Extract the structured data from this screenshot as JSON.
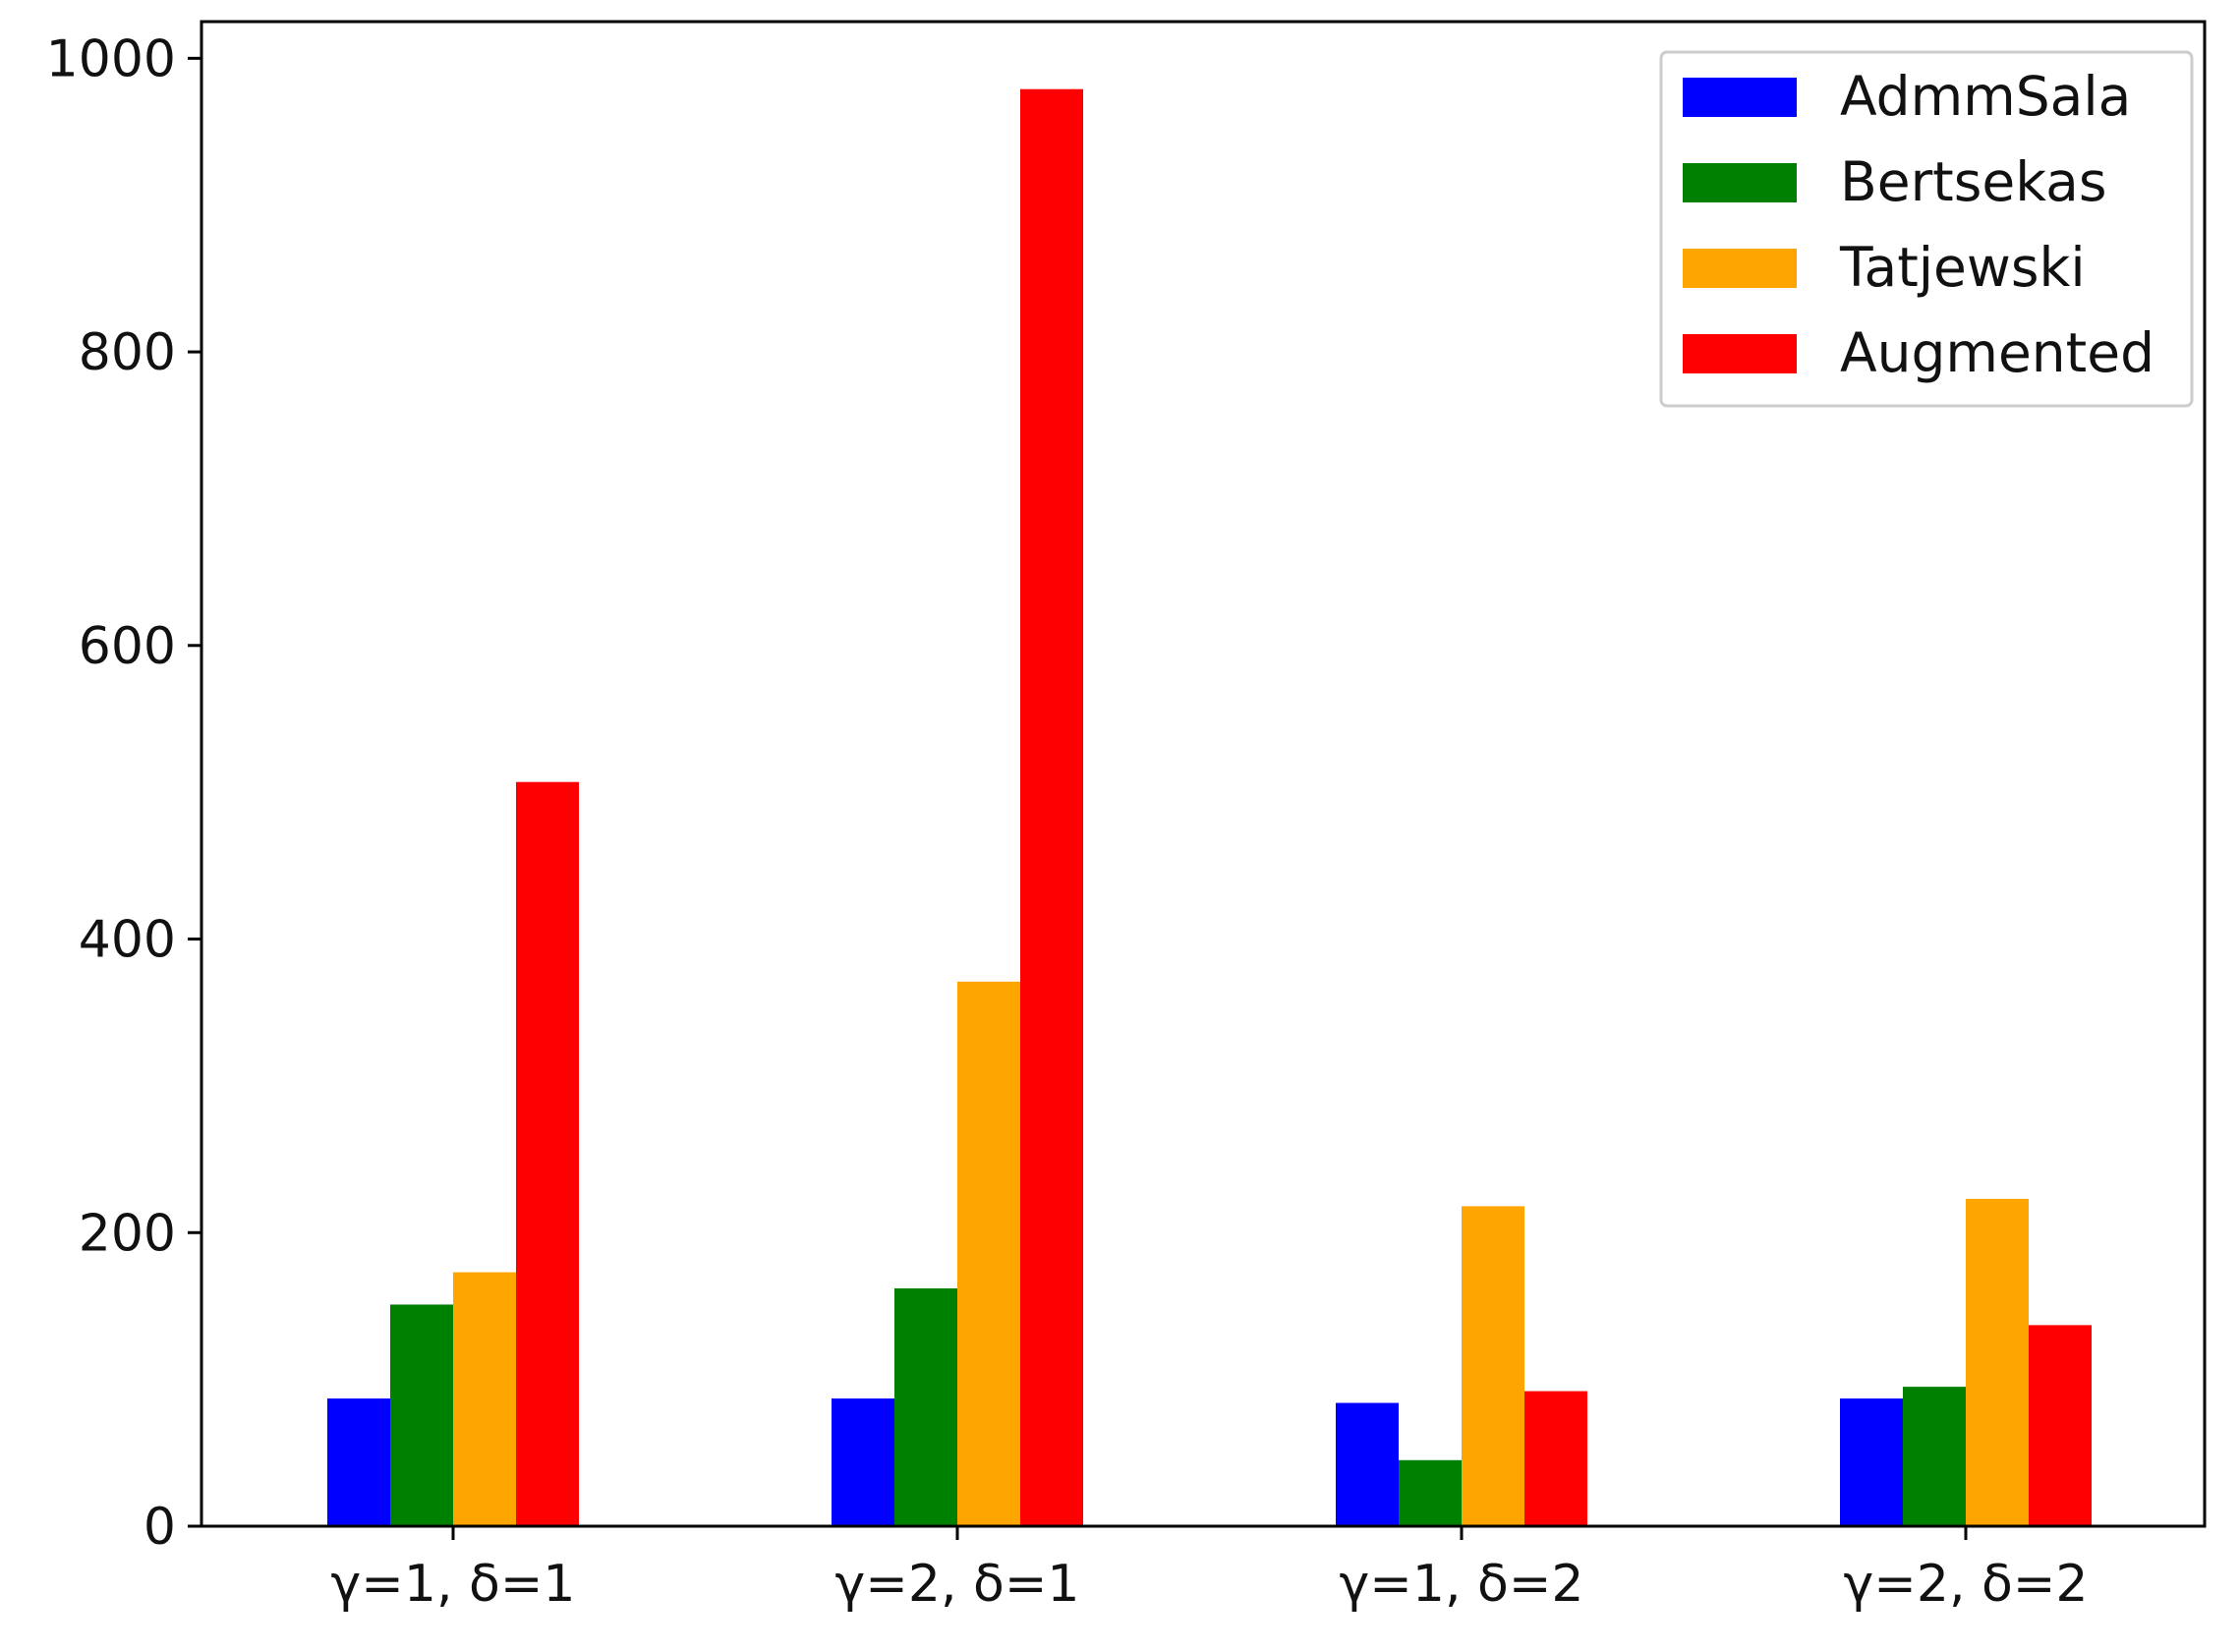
{
  "chart_data": {
    "type": "bar",
    "title": "",
    "xlabel": "",
    "ylabel": "",
    "ylim": [
      0,
      1025
    ],
    "yticks": [
      0,
      200,
      400,
      600,
      800,
      1000
    ],
    "categories": [
      "γ=1, δ=1",
      "γ=2, δ=1",
      "γ=1, δ=2",
      "γ=2, δ=2"
    ],
    "series": [
      {
        "name": "AdmmSala",
        "color": "#0000ff",
        "values": [
          87,
          87,
          84,
          87
        ]
      },
      {
        "name": "Bertsekas",
        "color": "#008000",
        "values": [
          151,
          162,
          45,
          95
        ]
      },
      {
        "name": "Tatjewski",
        "color": "#ffa500",
        "values": [
          173,
          371,
          218,
          223
        ]
      },
      {
        "name": "Augmented",
        "color": "#ff0000",
        "values": [
          507,
          979,
          92,
          137
        ]
      }
    ],
    "legend_position": "upper right",
    "grid": false
  }
}
